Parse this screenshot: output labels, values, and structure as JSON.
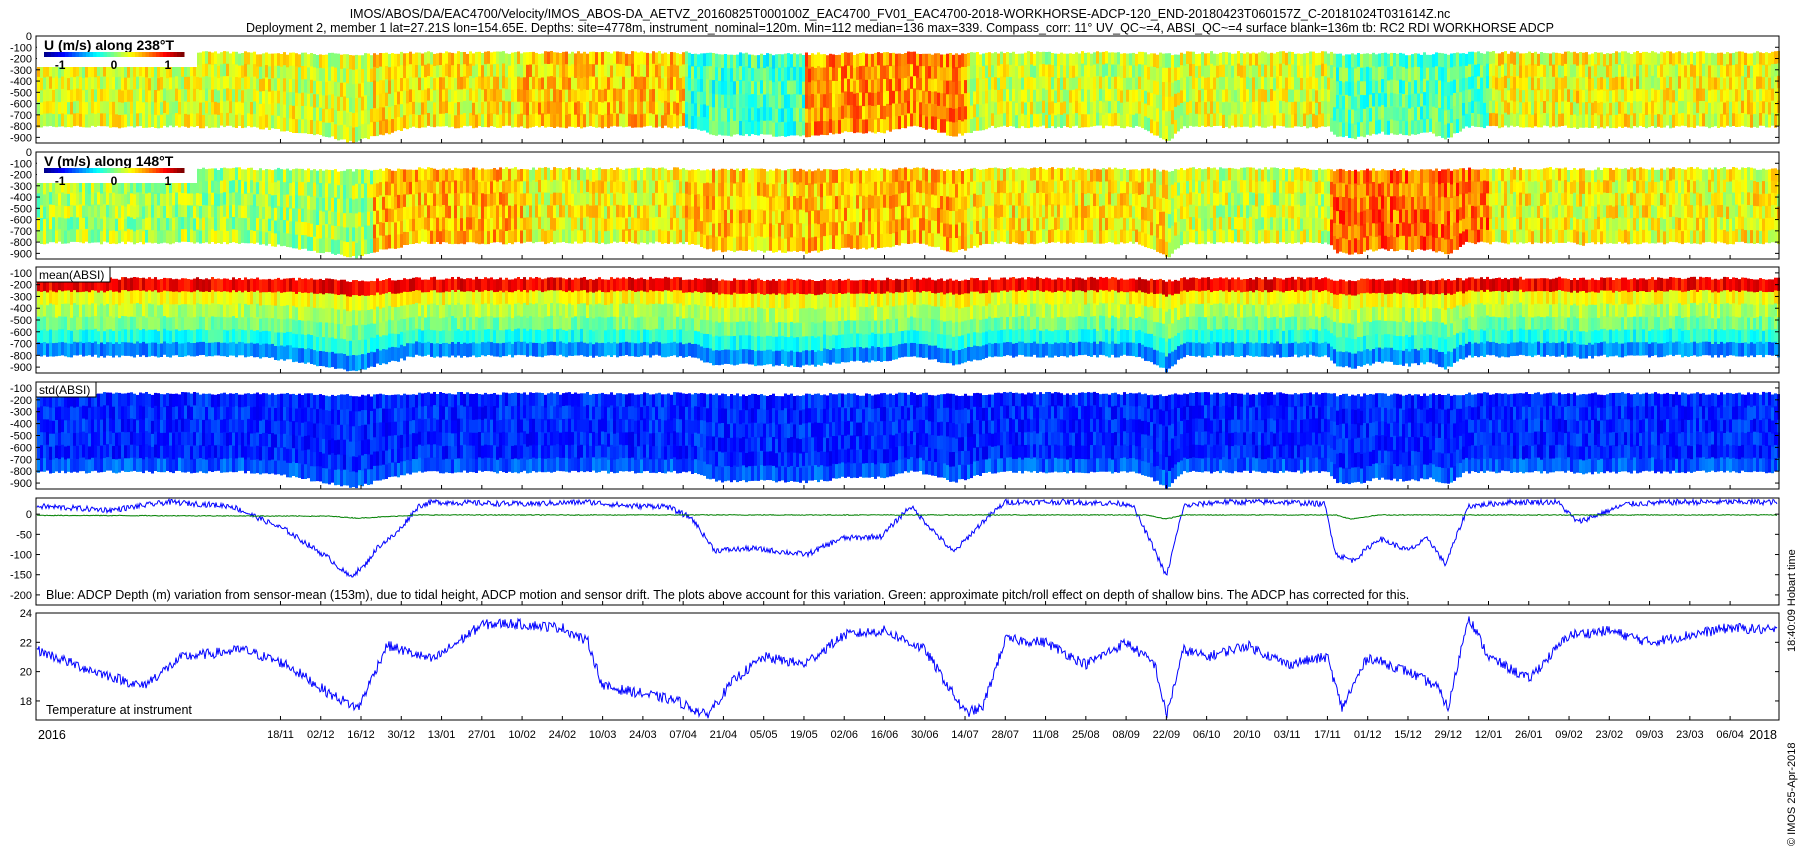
{
  "header": {
    "title_line1": "IMOS/ABOS/DA/EAC4700/Velocity/IMOS_ABOS-DA_AETVZ_20160825T000100Z_EAC4700_FV01_EAC4700-2018-WORKHORSE-ADCP-120_END-20180423T060157Z_C-20181024T031614Z.nc",
    "title_line2": "Deployment 2, member 1 lat=27.21S lon=154.65E. Depths: site=4778m, instrument_nominal=120m. Min=112 median=136 max=339. Compass_corr: 11° UV_QC~=4, ABSI_QC~=4 surface blank=136m tb: RC2 RDI WORKHORSE ADCP"
  },
  "side": {
    "hobart_time": "18:40:09 Hobart time",
    "imos_date": "© IMOS 25-Apr-2018"
  },
  "colors": {
    "series_blue": "#0000ff",
    "series_green": "#008000",
    "colormap": [
      "#00008f",
      "#0000ff",
      "#0080ff",
      "#00ffff",
      "#80ff80",
      "#ffff00",
      "#ff8000",
      "#ff0000",
      "#800000"
    ]
  },
  "chart_data": [
    {
      "type": "heatmap",
      "title": "U (m/s) along 238°T",
      "colorbar_ticks": [
        "-1",
        "0",
        "1"
      ],
      "colorbar_range": [
        -1.3,
        1.3
      ],
      "yticks": [
        "0",
        "-100",
        "-200",
        "-300",
        "-400",
        "-500",
        "-600",
        "-700",
        "-800",
        "-900"
      ],
      "ylim": [
        -950,
        0
      ],
      "x_range": [
        "2016-08-25",
        "2018-04-23"
      ],
      "profile_top_depth": -136,
      "profile_bottom_depth_range": [
        -800,
        -940
      ],
      "mean_velocity_by_period": [
        {
          "start": "2016-08-25",
          "end": "2016-12-20",
          "mean": 0.25
        },
        {
          "start": "2016-12-20",
          "end": "2017-02-10",
          "mean": 0.35
        },
        {
          "start": "2017-02-10",
          "end": "2017-04-07",
          "mean": 0.45
        },
        {
          "start": "2017-04-07",
          "end": "2017-05-19",
          "mean": -0.15
        },
        {
          "start": "2017-05-19",
          "end": "2017-07-14",
          "mean": 0.6
        },
        {
          "start": "2017-07-14",
          "end": "2017-09-22",
          "mean": 0.2
        },
        {
          "start": "2017-09-22",
          "end": "2017-11-17",
          "mean": 0.25
        },
        {
          "start": "2017-11-17",
          "end": "2018-01-12",
          "mean": -0.1
        },
        {
          "start": "2018-01-12",
          "end": "2018-04-23",
          "mean": 0.3
        }
      ]
    },
    {
      "type": "heatmap",
      "title": "V (m/s) along 148°T",
      "colorbar_ticks": [
        "-1",
        "0",
        "1"
      ],
      "colorbar_range": [
        -1.3,
        1.3
      ],
      "yticks": [
        "0",
        "-100",
        "-200",
        "-300",
        "-400",
        "-500",
        "-600",
        "-700",
        "-800",
        "-900"
      ],
      "ylim": [
        -950,
        0
      ],
      "x_range": [
        "2016-08-25",
        "2018-04-23"
      ],
      "mean_velocity_by_period": [
        {
          "start": "2016-08-25",
          "end": "2016-12-20",
          "mean": 0.1
        },
        {
          "start": "2016-12-20",
          "end": "2017-02-10",
          "mean": 0.5
        },
        {
          "start": "2017-02-10",
          "end": "2017-04-07",
          "mean": 0.3
        },
        {
          "start": "2017-04-07",
          "end": "2017-05-19",
          "mean": 0.45
        },
        {
          "start": "2017-05-19",
          "end": "2017-07-14",
          "mean": 0.5
        },
        {
          "start": "2017-07-14",
          "end": "2017-09-22",
          "mean": 0.35
        },
        {
          "start": "2017-09-22",
          "end": "2017-11-17",
          "mean": 0.2
        },
        {
          "start": "2017-11-17",
          "end": "2018-01-12",
          "mean": 0.7
        },
        {
          "start": "2018-01-12",
          "end": "2018-04-23",
          "mean": 0.3
        }
      ]
    },
    {
      "type": "heatmap",
      "title": "mean(ABSI)",
      "yticks": [
        "-100",
        "-200",
        "-300",
        "-400",
        "-500",
        "-600",
        "-700",
        "-800",
        "-900"
      ],
      "ylim": [
        -950,
        -50
      ],
      "x_range": [
        "2016-08-25",
        "2018-04-23"
      ],
      "depth_profile_colors": [
        "high near -150",
        "mid -200 to -500",
        "low below -650"
      ]
    },
    {
      "type": "heatmap",
      "title": "std(ABSI)",
      "yticks": [
        "-100",
        "-200",
        "-300",
        "-400",
        "-500",
        "-600",
        "-700",
        "-800",
        "-900"
      ],
      "ylim": [
        -950,
        -50
      ],
      "x_range": [
        "2016-08-25",
        "2018-04-23"
      ],
      "dominant_level": "low"
    },
    {
      "type": "line",
      "annotation": "Blue: ADCP Depth (m) variation from sensor-mean (153m), due to tidal height, ADCP motion and sensor drift. The plots above account for this variation. Green: approximate pitch/roll effect on depth of shallow bins. The ADCP has corrected for this.",
      "yticks": [
        "0",
        "-50",
        "-100",
        "-150",
        "-200"
      ],
      "ylim": [
        -225,
        40
      ],
      "series": [
        {
          "name": "ADCP Depth variation",
          "color": "#0000ff",
          "x": [
            "2016-08-25",
            "2016-09-20",
            "2016-10-10",
            "2016-11-01",
            "2016-11-20",
            "2016-12-05",
            "2016-12-12",
            "2016-12-17",
            "2016-12-22",
            "2016-12-28",
            "2017-01-05",
            "2017-01-10",
            "2017-02-10",
            "2017-03-05",
            "2017-03-20",
            "2017-04-01",
            "2017-04-10",
            "2017-04-18",
            "2017-05-01",
            "2017-05-20",
            "2017-06-01",
            "2017-06-15",
            "2017-06-25",
            "2017-07-10",
            "2017-07-20",
            "2017-07-28",
            "2017-08-20",
            "2017-09-10",
            "2017-09-18",
            "2017-09-22",
            "2017-09-28",
            "2017-10-10",
            "2017-11-01",
            "2017-11-16",
            "2017-11-20",
            "2017-11-26",
            "2017-12-05",
            "2017-12-15",
            "2017-12-22",
            "2017-12-28",
            "2018-01-05",
            "2018-01-20",
            "2018-02-05",
            "2018-02-12",
            "2018-03-01",
            "2018-03-20",
            "2018-04-23"
          ],
          "y": [
            20,
            10,
            30,
            20,
            -40,
            -110,
            -155,
            -130,
            -80,
            -50,
            20,
            30,
            25,
            30,
            20,
            20,
            -10,
            -90,
            -85,
            -100,
            -60,
            -55,
            20,
            -95,
            -20,
            30,
            30,
            25,
            -90,
            -155,
            20,
            30,
            30,
            25,
            -100,
            -115,
            -60,
            -90,
            -60,
            -125,
            20,
            30,
            30,
            -20,
            25,
            30,
            30
          ]
        },
        {
          "name": "pitch/roll effect",
          "color": "#008000",
          "x": [
            "2016-08-25",
            "2016-12-05",
            "2016-12-15",
            "2017-01-05",
            "2017-09-15",
            "2017-09-22",
            "2017-09-28",
            "2017-11-20",
            "2017-11-25",
            "2017-12-05",
            "2018-04-23"
          ],
          "y": [
            -3,
            -5,
            -10,
            -2,
            -2,
            -12,
            -2,
            -2,
            -12,
            -2,
            -2
          ]
        }
      ]
    },
    {
      "type": "line",
      "annotation": "Temperature at instrument",
      "yticks": [
        "24",
        "22",
        "20",
        "18"
      ],
      "ylim": [
        16.7,
        24
      ],
      "series": [
        {
          "name": "Temperature",
          "color": "#0000ff",
          "x": [
            "2016-08-25",
            "2016-09-10",
            "2016-10-01",
            "2016-10-15",
            "2016-11-05",
            "2016-11-20",
            "2016-12-05",
            "2016-12-15",
            "2016-12-25",
            "2017-01-10",
            "2017-01-27",
            "2017-02-05",
            "2017-02-24",
            "2017-03-05",
            "2017-03-10",
            "2017-03-24",
            "2017-04-05",
            "2017-04-15",
            "2017-04-25",
            "2017-05-05",
            "2017-05-19",
            "2017-06-02",
            "2017-06-16",
            "2017-06-30",
            "2017-07-14",
            "2017-07-20",
            "2017-07-28",
            "2017-08-11",
            "2017-08-25",
            "2017-09-08",
            "2017-09-18",
            "2017-09-22",
            "2017-09-28",
            "2017-10-06",
            "2017-10-20",
            "2017-11-03",
            "2017-11-17",
            "2017-11-22",
            "2017-12-01",
            "2017-12-15",
            "2017-12-25",
            "2017-12-29",
            "2018-01-05",
            "2018-01-12",
            "2018-01-26",
            "2018-02-09",
            "2018-02-23",
            "2018-03-09",
            "2018-03-23",
            "2018-04-06",
            "2018-04-23"
          ],
          "y": [
            21.5,
            20.3,
            19.0,
            21.0,
            21.5,
            20.5,
            18.5,
            17.5,
            21.8,
            20.8,
            23.2,
            23.3,
            23.0,
            22.0,
            19.0,
            18.5,
            18.0,
            17.0,
            19.5,
            21.0,
            20.5,
            22.5,
            22.8,
            21.5,
            17.2,
            17.5,
            22.2,
            22.0,
            20.5,
            22.0,
            20.5,
            17.0,
            21.5,
            21.0,
            21.8,
            20.5,
            21.0,
            17.5,
            21.0,
            20.0,
            19.0,
            17.5,
            23.8,
            21.0,
            19.5,
            22.5,
            22.8,
            22.0,
            22.5,
            23.0,
            22.8
          ]
        }
      ]
    }
  ],
  "x_axis": {
    "first_label": "2016",
    "last_label": "2018",
    "tick_labels": [
      {
        "date": "2016-11-18",
        "label": "18/11"
      },
      {
        "date": "2016-12-02",
        "label": "02/12"
      },
      {
        "date": "2016-12-16",
        "label": "16/12"
      },
      {
        "date": "2016-12-30",
        "label": "30/12"
      },
      {
        "date": "2017-01-13",
        "label": "13/01"
      },
      {
        "date": "2017-01-27",
        "label": "27/01"
      },
      {
        "date": "2017-02-10",
        "label": "10/02"
      },
      {
        "date": "2017-02-24",
        "label": "24/02"
      },
      {
        "date": "2017-03-10",
        "label": "10/03"
      },
      {
        "date": "2017-03-24",
        "label": "24/03"
      },
      {
        "date": "2017-04-07",
        "label": "07/04"
      },
      {
        "date": "2017-04-21",
        "label": "21/04"
      },
      {
        "date": "2017-05-05",
        "label": "05/05"
      },
      {
        "date": "2017-05-19",
        "label": "19/05"
      },
      {
        "date": "2017-06-02",
        "label": "02/06"
      },
      {
        "date": "2017-06-16",
        "label": "16/06"
      },
      {
        "date": "2017-06-30",
        "label": "30/06"
      },
      {
        "date": "2017-07-14",
        "label": "14/07"
      },
      {
        "date": "2017-07-28",
        "label": "28/07"
      },
      {
        "date": "2017-08-11",
        "label": "11/08"
      },
      {
        "date": "2017-08-25",
        "label": "25/08"
      },
      {
        "date": "2017-09-08",
        "label": "08/09"
      },
      {
        "date": "2017-09-22",
        "label": "22/09"
      },
      {
        "date": "2017-10-06",
        "label": "06/10"
      },
      {
        "date": "2017-10-20",
        "label": "20/10"
      },
      {
        "date": "2017-11-03",
        "label": "03/11"
      },
      {
        "date": "2017-11-17",
        "label": "17/11"
      },
      {
        "date": "2017-12-01",
        "label": "01/12"
      },
      {
        "date": "2017-12-15",
        "label": "15/12"
      },
      {
        "date": "2017-12-29",
        "label": "29/12"
      },
      {
        "date": "2018-01-12",
        "label": "12/01"
      },
      {
        "date": "2018-01-26",
        "label": "26/01"
      },
      {
        "date": "2018-02-09",
        "label": "09/02"
      },
      {
        "date": "2018-02-23",
        "label": "23/02"
      },
      {
        "date": "2018-03-09",
        "label": "09/03"
      },
      {
        "date": "2018-03-23",
        "label": "23/03"
      },
      {
        "date": "2018-04-06",
        "label": "06/04"
      }
    ]
  }
}
